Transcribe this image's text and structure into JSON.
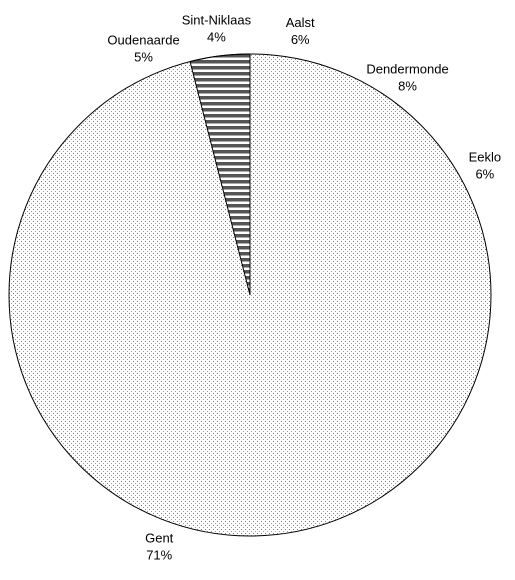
{
  "chart_data": {
    "type": "pie",
    "labels": [
      "Aalst",
      "Dendermonde",
      "Eeklo",
      "Gent",
      "Oudenaarde",
      "Sint-Niklaas"
    ],
    "values": [
      6,
      8,
      6,
      71,
      5,
      4
    ],
    "value_labels": [
      "6%",
      "8%",
      "6%",
      "71%",
      "5%",
      "4%"
    ],
    "patterns": [
      "dots",
      "dots",
      "dots",
      "dots",
      "dots",
      "stripes"
    ]
  }
}
